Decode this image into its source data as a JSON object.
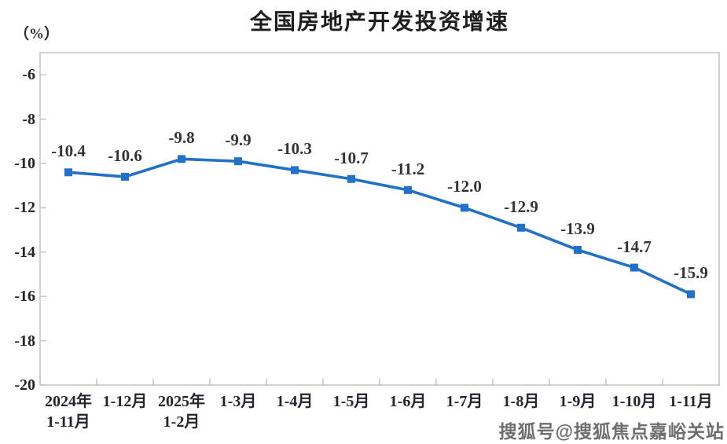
{
  "page": {
    "watermark": "搜狐号@搜狐焦点嘉峪关站"
  },
  "chart_data": {
    "type": "line",
    "title": "全国房地产开发投资增速",
    "unit_label": "（%）",
    "categories": [
      "2024年\n1-11月",
      "1-12月",
      "2025年\n1-2月",
      "1-3月",
      "1-4月",
      "1-5月",
      "1-6月",
      "1-7月",
      "1-8月",
      "1-9月",
      "1-10月",
      "1-11月"
    ],
    "values": [
      -10.4,
      -10.6,
      -9.8,
      -9.9,
      -10.3,
      -10.7,
      -11.2,
      -12.0,
      -12.9,
      -13.9,
      -14.7,
      -15.9
    ],
    "data_labels": [
      "-10.4",
      "-10.6",
      "-9.8",
      "-9.9",
      "-10.3",
      "-10.7",
      "-11.2",
      "-12.0",
      "-12.9",
      "-13.9",
      "-14.7",
      "-15.9"
    ],
    "y_ticks": [
      -6,
      -8,
      -10,
      -12,
      -14,
      -16,
      -18,
      -20
    ],
    "ylim": [
      -20,
      -5
    ],
    "grid": false,
    "legend": "none",
    "marker": "square",
    "line_color": "#2271c8",
    "axis_color": "#c4c4c4",
    "text_color": "#23252e"
  }
}
